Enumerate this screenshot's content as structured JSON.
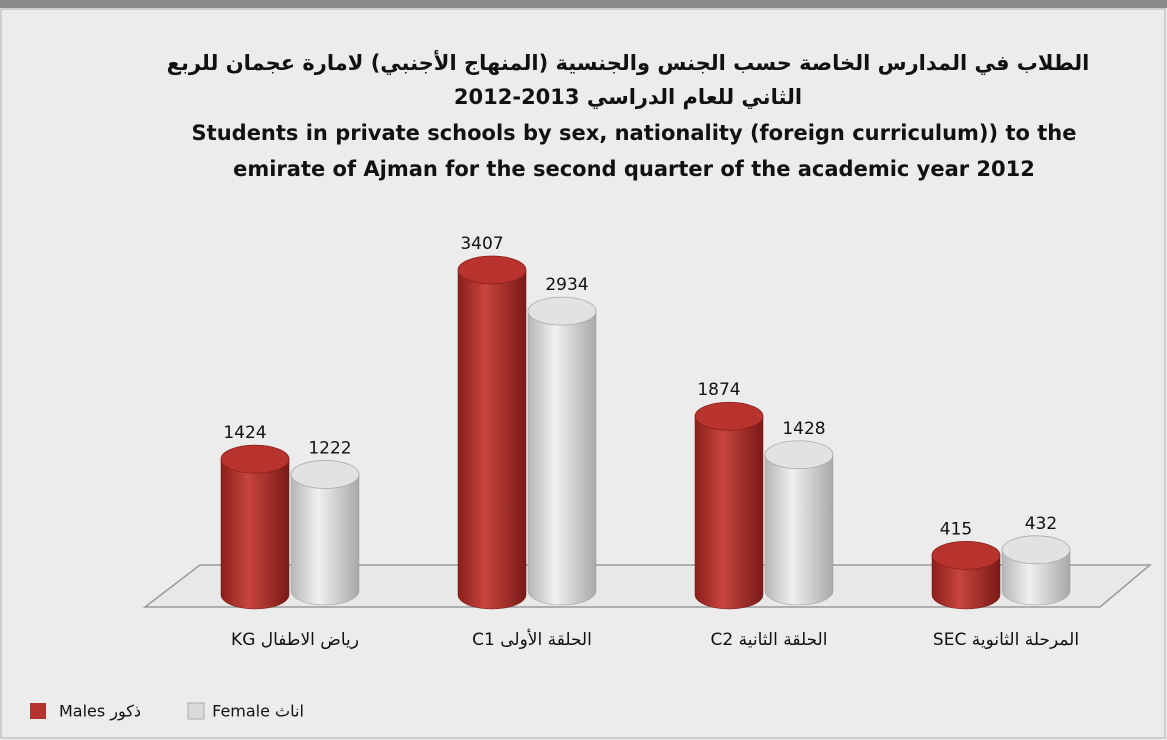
{
  "chart_data": {
    "type": "cylinder-bar",
    "title": [
      "الطلاب في المدارس الخاصة حسب الجنس والجنسية (المنهاج الأجنبي) لامارة عجمان للربع",
      "الثاني للعام الدراسي 2013-2012"
    ],
    "subtitle": [
      "Students in private schools by sex, nationality  (foreign curriculum)) to the",
      "emirate of Ajman for the second quarter of the academic year 2012"
    ],
    "categories": [
      "رياض الاطفال KG",
      "الحلقة الأولى C1",
      "الحلقة الثانية C2",
      "المرحلة الثانوية SEC"
    ],
    "series": [
      {
        "name": "ذكور Males",
        "color": "#b5332e",
        "values": [
          1424,
          3407,
          1874,
          415
        ]
      },
      {
        "name": "اناث Female",
        "color": "#d4d4d4",
        "values": [
          1222,
          2934,
          1428,
          432
        ]
      }
    ],
    "legend": "bottom-left"
  }
}
